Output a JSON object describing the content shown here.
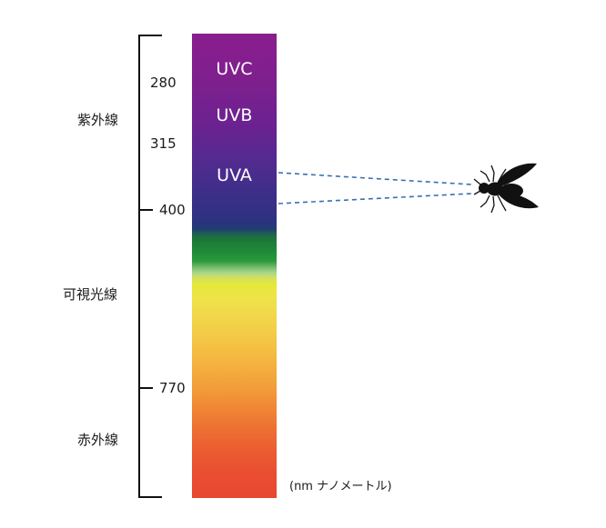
{
  "scale": {
    "ticks": [
      "280",
      "315",
      "400",
      "770"
    ],
    "regions": [
      "紫外線",
      "可視光線",
      "赤外線"
    ]
  },
  "spectrum": {
    "bands": [
      "UVC",
      "UVB",
      "UVA"
    ]
  },
  "unit_note": "(nm ナノメートル)",
  "colors": {
    "uvc": "#8a1e8d",
    "uva": "#3b2f88",
    "green": "#1f8a3a",
    "yellow": "#e6e83a",
    "red": "#e8472f",
    "dash": "#3a6fb0",
    "fly": "#111111"
  },
  "icons": [
    "fly-icon"
  ]
}
